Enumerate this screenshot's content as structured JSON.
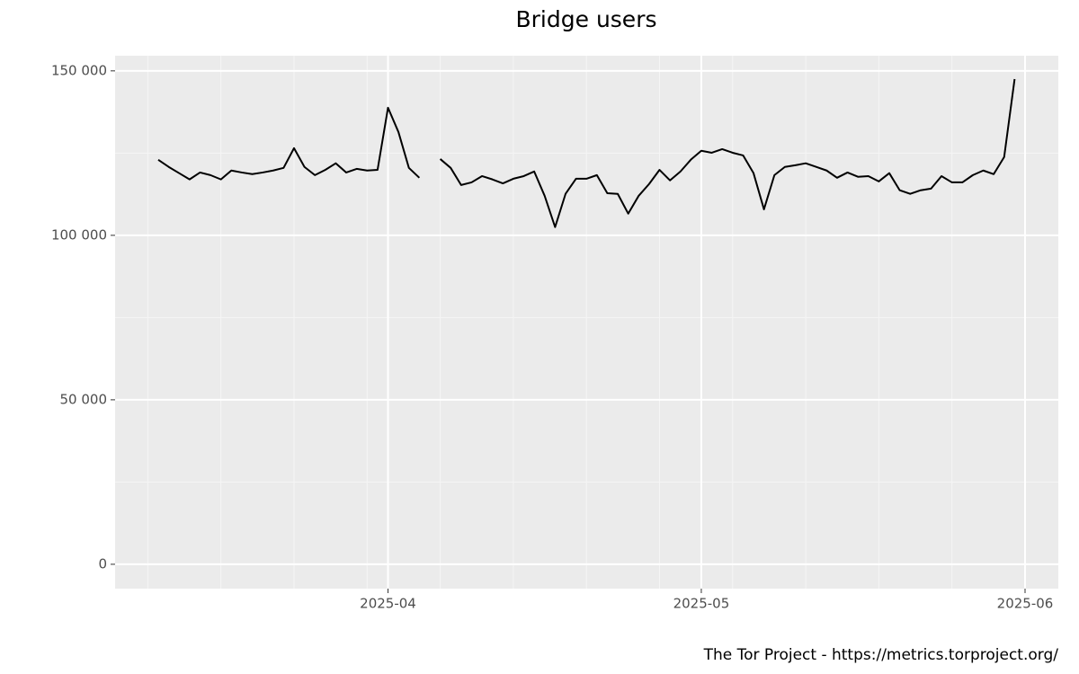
{
  "chart_data": {
    "type": "line",
    "title": "Bridge users",
    "caption": "The Tor Project - https://metrics.torproject.org/",
    "categories": [
      null,
      null,
      null,
      null,
      null,
      null,
      null,
      null,
      null,
      null,
      null,
      null,
      null,
      null,
      null,
      null,
      null,
      null,
      null,
      null,
      null,
      null,
      "2025-04",
      null,
      null,
      null,
      null,
      null,
      null,
      null,
      null,
      null,
      null,
      null,
      null,
      null,
      null,
      null,
      null,
      null,
      null,
      null,
      null,
      null,
      null,
      null,
      null,
      null,
      null,
      null,
      null,
      null,
      "2025-05",
      null,
      null,
      null,
      null,
      null,
      null,
      null,
      null,
      null,
      null,
      null,
      null,
      null,
      null,
      null,
      null,
      null,
      null,
      null,
      null,
      null,
      null,
      null,
      null,
      null,
      null,
      null,
      null,
      null,
      null,
      "2025-06"
    ],
    "series": [
      {
        "name": "Bridge users",
        "color": "#000000",
        "values": [
          122950,
          120800,
          118900,
          117000,
          119100,
          118300,
          117000,
          119700,
          119100,
          118600,
          119100,
          119700,
          120500,
          126500,
          120800,
          118300,
          119900,
          121900,
          119100,
          120200,
          119700,
          119900,
          138800,
          131400,
          120500,
          117500,
          null,
          123200,
          120500,
          115300,
          116100,
          118000,
          117000,
          115800,
          117200,
          118000,
          119400,
          112000,
          102500,
          112600,
          117200,
          117200,
          118300,
          112800,
          112600,
          106600,
          112000,
          115600,
          119900,
          116700,
          119400,
          123000,
          125700,
          125100,
          126200,
          125100,
          124300,
          118900,
          107900,
          118300,
          120800,
          121300,
          121900,
          120800,
          119700,
          117500,
          119100,
          117800,
          118000,
          116400,
          118900,
          113700,
          112600,
          113700,
          114200,
          118000,
          116100,
          116100,
          118300,
          119700,
          118600,
          123800,
          147500,
          null
        ]
      }
    ],
    "ylim": [
      -7400,
      154600
    ],
    "yticks": [
      0,
      {
        "value": 50000,
        "label": "50 000"
      },
      {
        "value": 100000,
        "label": "100 000"
      },
      {
        "value": 150000,
        "label": "150 000"
      }
    ],
    "grid": true
  }
}
